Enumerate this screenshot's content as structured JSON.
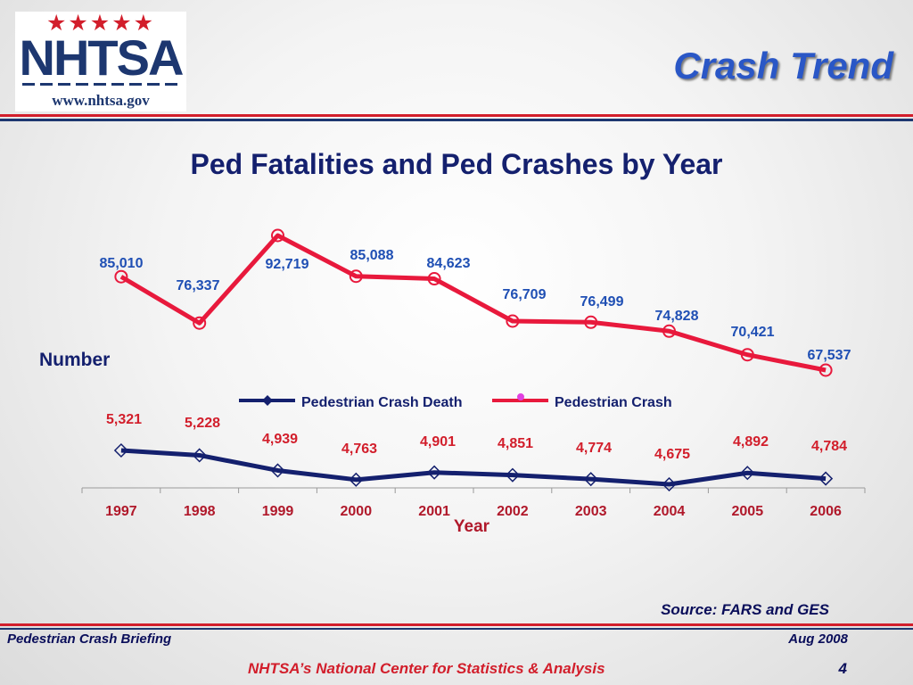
{
  "header": {
    "slide_title": "Crash Trend",
    "logo": {
      "stars": "★★★★★",
      "wordmark": "NHTSA",
      "url": "www.nhtsa.gov"
    }
  },
  "footer": {
    "source": "Source:  FARS and GES",
    "left": "Pedestrian Crash Briefing",
    "right": "Aug 2008",
    "center": "NHTSA’s National Center for Statistics & Analysis",
    "page_number": "4"
  },
  "colors": {
    "crash_series": "#e8193c",
    "death_series": "#14206e",
    "crash_labels": "#1f4fb4",
    "death_labels": "#d21e2b",
    "tick_labels": "#b0182a",
    "title": "#14206e",
    "slide_title": "#2a57c6"
  },
  "chart_data": {
    "type": "line",
    "title": "Ped Fatalities and Ped Crashes by Year",
    "xlabel": "Year",
    "ylabel": "Number",
    "categories": [
      "1997",
      "1998",
      "1999",
      "2000",
      "2001",
      "2002",
      "2003",
      "2004",
      "2005",
      "2006"
    ],
    "legend_position": "middle",
    "grid": false,
    "series": [
      {
        "name": "Pedestrian Crash",
        "marker": "circle",
        "values": [
          85010,
          76337,
          92719,
          85088,
          84623,
          76709,
          76499,
          74828,
          70421,
          67537
        ],
        "labels": [
          "85,010",
          "76,337",
          "92,719",
          "85,088",
          "84,623",
          "76,709",
          "76,499",
          "74,828",
          "70,421",
          "67,537"
        ]
      },
      {
        "name": "Pedestrian Crash Death",
        "marker": "diamond",
        "values": [
          5321,
          5228,
          4939,
          4763,
          4901,
          4851,
          4774,
          4675,
          4892,
          4784
        ],
        "labels": [
          "5,321",
          "5,228",
          "4,939",
          "4,763",
          "4,901",
          "4,851",
          "4,774",
          "4,675",
          "4,892",
          "4,784"
        ]
      }
    ]
  }
}
